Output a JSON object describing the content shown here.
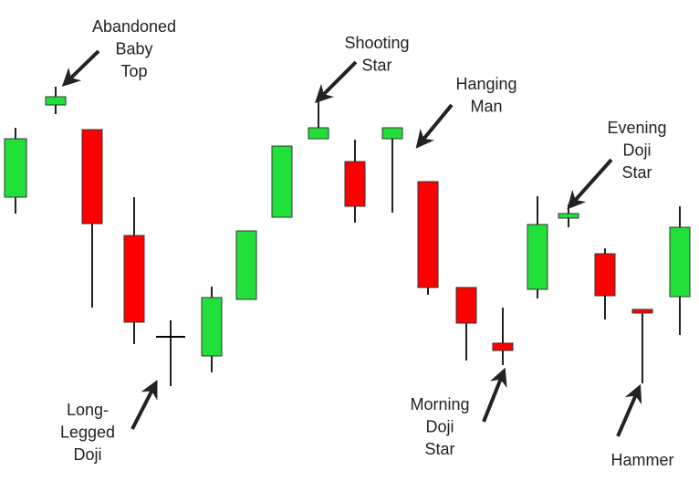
{
  "chart_data": {
    "type": "candlestick",
    "up_color": "#22e03a",
    "down_color": "#ff0000",
    "doji_color": "#000000",
    "ylim": [
      0,
      527
    ],
    "open": [
      311,
      412,
      385,
      269,
      158,
      137,
      199,
      289,
      375,
      350,
      375,
      328,
      212,
      151,
      210,
      288,
      249,
      188,
      202
    ],
    "high": [
      387,
      432,
      385,
      311,
      176,
      213,
      274,
      367,
      417,
      374,
      387,
      328,
      212,
      190,
      312,
      303,
      255,
      188,
      301
    ],
    "low": [
      293,
      402,
      190,
      150,
      104,
      119,
      199,
      289,
      375,
      283,
      294,
      204,
      132,
      127,
      200,
      278,
      177,
      107,
      160
    ],
    "close": [
      375,
      421,
      282,
      174,
      158,
      201,
      274,
      367,
      387,
      301,
      387,
      212,
      173,
      143,
      281,
      293,
      203,
      184,
      278
    ],
    "annotations": [
      {
        "lines": [
          "Abandoned",
          "Baby",
          "Top"
        ],
        "candle": 1
      },
      {
        "lines": [
          "Shooting",
          "Star"
        ],
        "candle": 8
      },
      {
        "lines": [
          "Hanging",
          "Man"
        ],
        "candle": 10
      },
      {
        "lines": [
          "Evening",
          "Doji",
          "Star"
        ],
        "candle": 15
      },
      {
        "lines": [
          "Long-",
          "Legged",
          "Doji"
        ],
        "candle": 4
      },
      {
        "lines": [
          "Morning",
          "Doji",
          "Star"
        ],
        "candle": 13
      },
      {
        "lines": [
          "Hammer"
        ],
        "candle": 17
      }
    ]
  }
}
